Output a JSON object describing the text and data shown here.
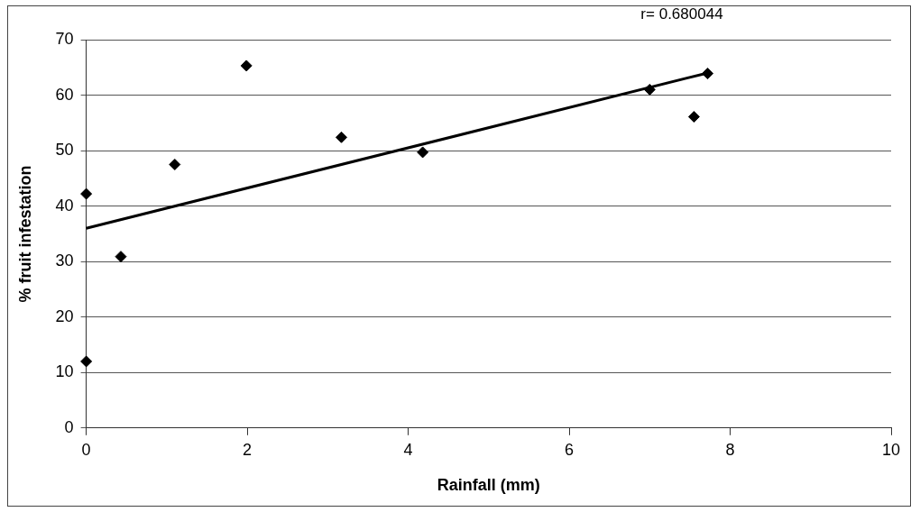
{
  "chart_data": {
    "type": "scatter",
    "xlabel": "Rainfall (mm)",
    "ylabel": "% fruit infestation",
    "annotations": [
      "r= 0.680044"
    ],
    "series": [
      {
        "color": "#000000",
        "marker": "diamond",
        "x": [
          0,
          0,
          0.43,
          1.1,
          1.99,
          3.17,
          4.18,
          7.0,
          7.55,
          7.72
        ],
        "values": [
          12,
          42.2,
          30.9,
          47.5,
          65.3,
          52.4,
          49.7,
          61.0,
          56.1,
          63.9
        ]
      },
      {
        "type": "line",
        "color": "#000000",
        "marker": "none",
        "x": [
          0,
          7.72
        ],
        "values": [
          36,
          64
        ]
      }
    ],
    "xlim": [
      0,
      10
    ],
    "xticks": [
      0,
      2,
      4,
      6,
      8,
      10
    ],
    "ylim": [
      0,
      70
    ],
    "yticks": [
      0,
      10,
      20,
      30,
      40,
      50,
      60,
      70
    ],
    "grid": "y",
    "legend": false
  }
}
